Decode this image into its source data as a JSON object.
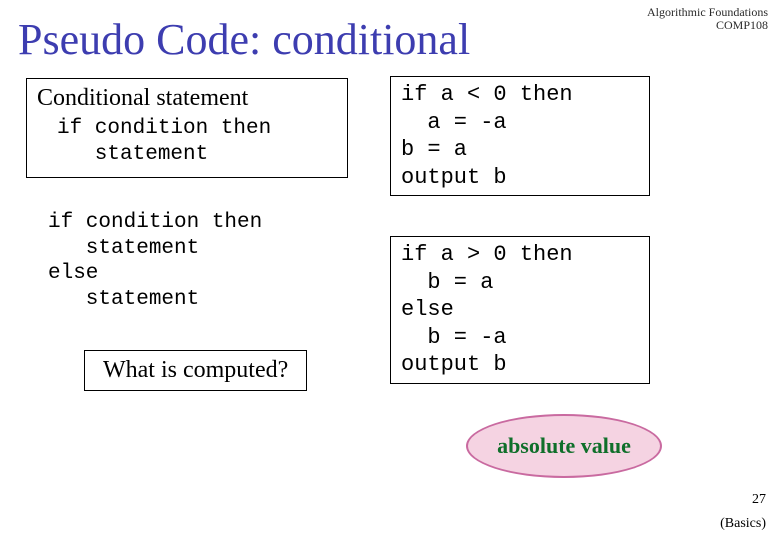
{
  "header": {
    "line1": "Algorithmic Foundations",
    "line2": "COMP108",
    "color": "#2a2a2a"
  },
  "title": {
    "text": "Pseudo Code: conditional",
    "color": "#3d3db0"
  },
  "left_box": {
    "heading": "Conditional statement",
    "code": "if condition then\n   statement"
  },
  "if_else_block": "if condition then\n   statement\nelse\n   statement",
  "question": "What is computed?",
  "code_box_1": "if a < 0 then\n  a = -a\nb = a\noutput b",
  "code_box_2": "if a > 0 then\n  b = a\nelse\n  b = -a\noutput b",
  "answer": {
    "text": "absolute value",
    "text_color": "#0f6f2a",
    "bg_color": "#f5d3e2",
    "border_color": "#c96aa0"
  },
  "slide_number": "27",
  "footer": "(Basics)",
  "colors": {
    "background": "#ffffff",
    "text": "#000000"
  }
}
